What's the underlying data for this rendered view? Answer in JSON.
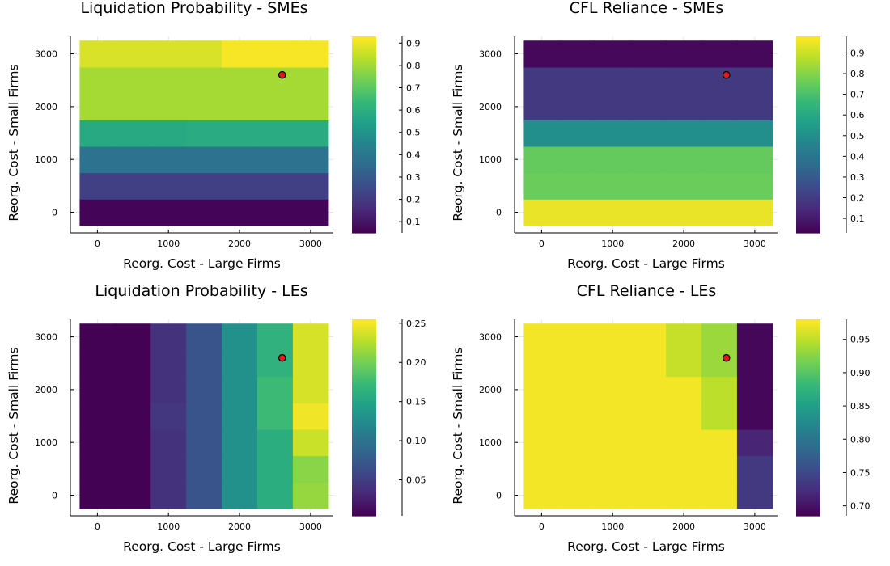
{
  "chart_data": [
    {
      "type": "heatmap",
      "title": "Liquidation Probability - SMEs",
      "xlabel": "Reorg. Cost - Large Firms",
      "ylabel": "Reorg. Cost - Small Firms",
      "x_centers": [
        0,
        500,
        1000,
        1500,
        2000,
        2500,
        3000
      ],
      "y_centers": [
        0,
        500,
        1000,
        1500,
        2000,
        2500,
        3000
      ],
      "x_ticks": [
        0,
        1000,
        2000,
        3000
      ],
      "y_ticks": [
        0,
        1000,
        2000,
        3000
      ],
      "colorbar_ticks": [
        "0.1",
        "0.2",
        "0.3",
        "0.4",
        "0.5",
        "0.6",
        "0.7",
        "0.8",
        "0.9"
      ],
      "colorbar_range": [
        0.05,
        0.93
      ],
      "colormap": "viridis",
      "values": [
        [
          0.06,
          0.06,
          0.06,
          0.06,
          0.06,
          0.06,
          0.06
        ],
        [
          0.22,
          0.22,
          0.22,
          0.22,
          0.22,
          0.22,
          0.22
        ],
        [
          0.38,
          0.38,
          0.38,
          0.38,
          0.38,
          0.38,
          0.38
        ],
        [
          0.58,
          0.58,
          0.58,
          0.59,
          0.59,
          0.59,
          0.59
        ],
        [
          0.81,
          0.81,
          0.81,
          0.81,
          0.81,
          0.81,
          0.81
        ],
        [
          0.81,
          0.81,
          0.81,
          0.81,
          0.81,
          0.81,
          0.81
        ],
        [
          0.88,
          0.88,
          0.88,
          0.88,
          0.92,
          0.92,
          0.92
        ]
      ],
      "marker": {
        "x": 2600,
        "y": 2600,
        "color": "#e31a1c"
      }
    },
    {
      "type": "heatmap",
      "title": "CFL Reliance - SMEs",
      "xlabel": "Reorg. Cost - Large Firms",
      "ylabel": "Reorg. Cost - Small Firms",
      "x_centers": [
        0,
        500,
        1000,
        1500,
        2000,
        2500,
        3000
      ],
      "y_centers": [
        0,
        500,
        1000,
        1500,
        2000,
        2500,
        3000
      ],
      "x_ticks": [
        0,
        1000,
        2000,
        3000
      ],
      "y_ticks": [
        0,
        1000,
        2000,
        3000
      ],
      "colorbar_ticks": [
        "0.1",
        "0.2",
        "0.3",
        "0.4",
        "0.5",
        "0.6",
        "0.7",
        "0.8",
        "0.9"
      ],
      "colorbar_range": [
        0.03,
        0.98
      ],
      "colormap": "viridis",
      "values": [
        [
          0.95,
          0.95,
          0.95,
          0.95,
          0.95,
          0.95,
          0.95
        ],
        [
          0.76,
          0.76,
          0.76,
          0.76,
          0.76,
          0.76,
          0.76
        ],
        [
          0.75,
          0.75,
          0.75,
          0.75,
          0.75,
          0.75,
          0.75
        ],
        [
          0.5,
          0.5,
          0.5,
          0.5,
          0.5,
          0.5,
          0.5
        ],
        [
          0.19,
          0.19,
          0.19,
          0.19,
          0.19,
          0.19,
          0.19
        ],
        [
          0.19,
          0.19,
          0.19,
          0.19,
          0.19,
          0.19,
          0.19
        ],
        [
          0.05,
          0.05,
          0.05,
          0.05,
          0.05,
          0.05,
          0.05
        ]
      ],
      "marker": {
        "x": 2600,
        "y": 2600,
        "color": "#e31a1c"
      }
    },
    {
      "type": "heatmap",
      "title": "Liquidation Probability - LEs",
      "xlabel": "Reorg. Cost - Large Firms",
      "ylabel": "Reorg. Cost - Small Firms",
      "x_centers": [
        0,
        500,
        1000,
        1500,
        2000,
        2500,
        3000
      ],
      "y_centers": [
        0,
        500,
        1000,
        1500,
        2000,
        2500,
        3000
      ],
      "x_ticks": [
        0,
        1000,
        2000,
        3000
      ],
      "y_ticks": [
        0,
        1000,
        2000,
        3000
      ],
      "colorbar_ticks": [
        "0.05",
        "0.10",
        "0.15",
        "0.20",
        "0.25"
      ],
      "colorbar_range": [
        0.004,
        0.255
      ],
      "colormap": "viridis",
      "values": [
        [
          0.005,
          0.005,
          0.04,
          0.07,
          0.13,
          0.16,
          0.215
        ],
        [
          0.005,
          0.005,
          0.04,
          0.07,
          0.13,
          0.16,
          0.21
        ],
        [
          0.005,
          0.005,
          0.04,
          0.07,
          0.13,
          0.16,
          0.235
        ],
        [
          0.005,
          0.005,
          0.045,
          0.07,
          0.13,
          0.175,
          0.25
        ],
        [
          0.005,
          0.005,
          0.04,
          0.07,
          0.13,
          0.175,
          0.24
        ],
        [
          0.005,
          0.005,
          0.04,
          0.07,
          0.13,
          0.165,
          0.24
        ],
        [
          0.005,
          0.005,
          0.04,
          0.07,
          0.13,
          0.165,
          0.24
        ]
      ],
      "marker": {
        "x": 2600,
        "y": 2600,
        "color": "#e31a1c"
      }
    },
    {
      "type": "heatmap",
      "title": "CFL Reliance - LEs",
      "xlabel": "Reorg. Cost - Large Firms",
      "ylabel": "Reorg. Cost - Small Firms",
      "x_centers": [
        0,
        500,
        1000,
        1500,
        2000,
        2500,
        3000
      ],
      "y_centers": [
        0,
        500,
        1000,
        1500,
        2000,
        2500,
        3000
      ],
      "x_ticks": [
        0,
        1000,
        2000,
        3000
      ],
      "y_ticks": [
        0,
        1000,
        2000,
        3000
      ],
      "colorbar_ticks": [
        "0.70",
        "0.75",
        "0.80",
        "0.85",
        "0.90",
        "0.95"
      ],
      "colorbar_range": [
        0.685,
        0.98
      ],
      "colormap": "viridis",
      "values": [
        [
          0.975,
          0.975,
          0.975,
          0.975,
          0.975,
          0.975,
          0.735
        ],
        [
          0.975,
          0.975,
          0.975,
          0.975,
          0.975,
          0.975,
          0.735
        ],
        [
          0.975,
          0.975,
          0.975,
          0.975,
          0.975,
          0.975,
          0.715
        ],
        [
          0.975,
          0.975,
          0.975,
          0.975,
          0.975,
          0.95,
          0.69
        ],
        [
          0.975,
          0.975,
          0.975,
          0.975,
          0.975,
          0.95,
          0.69
        ],
        [
          0.975,
          0.975,
          0.975,
          0.975,
          0.955,
          0.935,
          0.69
        ],
        [
          0.975,
          0.975,
          0.975,
          0.975,
          0.955,
          0.935,
          0.69
        ]
      ],
      "marker": {
        "x": 2600,
        "y": 2600,
        "color": "#e31a1c"
      }
    }
  ]
}
